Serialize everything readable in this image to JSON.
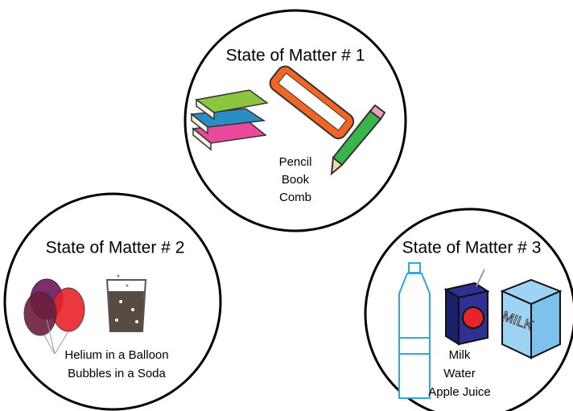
{
  "circles": [
    {
      "title": "State of Matter # 1",
      "items": [
        "Pencil",
        "Book",
        "Comb"
      ]
    },
    {
      "title": "State of Matter # 2",
      "items": [
        "Helium in a Balloon",
        "Bubbles in a Soda"
      ]
    },
    {
      "title": "State of Matter # 3",
      "items": [
        "Milk",
        "Water",
        "Apple Juice"
      ],
      "carton_label": "MILK"
    }
  ]
}
